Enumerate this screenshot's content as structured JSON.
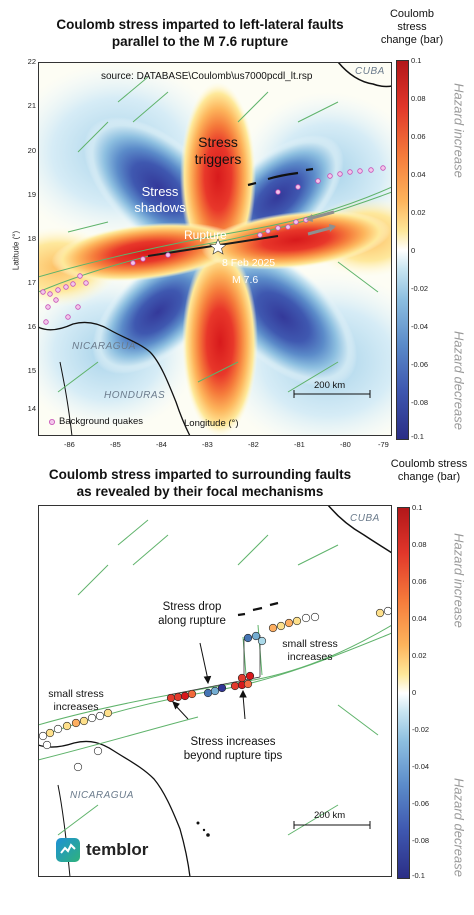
{
  "top_panel": {
    "title_line1": "Coulomb stress imparted to left-lateral faults",
    "title_line2": "parallel to the M 7.6 rupture",
    "source_text": "source: DATABASE\\Coulomb\\us7000pcdl_lt.rsp",
    "label_stress_triggers_1": "Stress",
    "label_stress_triggers_2": "triggers",
    "label_stress_shadows_1": "Stress",
    "label_stress_shadows_2": "shadows",
    "label_rupture": "Rupture",
    "event_date": "8 Feb 2025",
    "event_mag": "M 7.6",
    "country_cuba": "CUBA",
    "country_nicaragua": "NICARAGUA",
    "country_honduras": "HONDURAS",
    "scale_label": "200 km",
    "legend_label": "Background quakes",
    "xlabel": "Longitude (°)",
    "ylabel": "Latitude (°)",
    "lat_ticks": [
      "22",
      "21",
      "20",
      "19",
      "18",
      "17",
      "16",
      "15",
      "14"
    ],
    "lon_ticks": [
      "-86",
      "-85",
      "-84",
      "-83",
      "-82",
      "-81",
      "-80",
      "-79"
    ]
  },
  "bottom_panel": {
    "title_line1": "Coulomb stress imparted to surrounding faults",
    "title_line2": "as revealed by their focal mechanisms",
    "country_cuba": "CUBA",
    "country_nicaragua": "NICARAGUA",
    "annot_drop_1": "Stress drop",
    "annot_drop_2": "along rupture",
    "annot_right_1": "small stress",
    "annot_right_2": "increases",
    "annot_left_1": "small stress",
    "annot_left_2": "increases",
    "annot_tips_1": "Stress increases",
    "annot_tips_2": "beyond rupture tips",
    "scale_label": "200 km",
    "logo_text": "temblor"
  },
  "colorbar": {
    "title_line1": "Coulomb",
    "title_line2": "stress",
    "title_line3": "change (bar)",
    "title_b_line1": "Coulomb stress",
    "title_b_line2": "change (bar)",
    "ticks": [
      "0.1",
      "0.08",
      "0.06",
      "0.04",
      "0.02",
      "0",
      "-0.02",
      "-0.04",
      "-0.06",
      "-0.08",
      "-0.1"
    ],
    "hazard_increase": "Hazard increase",
    "hazard_decrease": "Hazard decrease",
    "colors": [
      "#d7191c",
      "#f46d43",
      "#fdae61",
      "#fee08b",
      "#ffffff",
      "#abd9e9",
      "#74add1",
      "#4575b4",
      "#313695"
    ]
  }
}
